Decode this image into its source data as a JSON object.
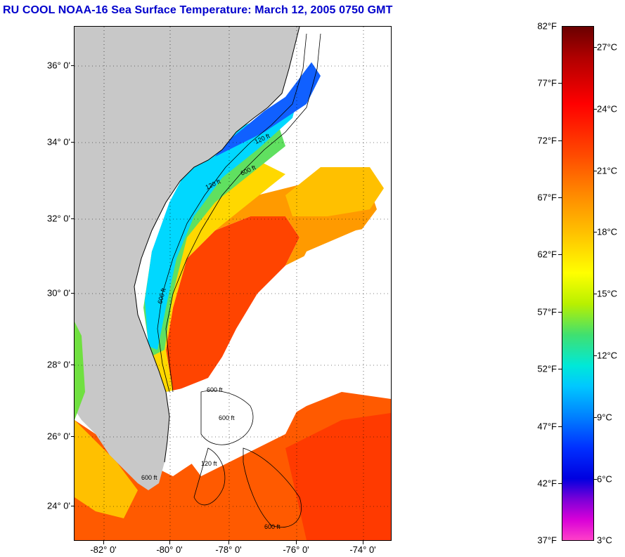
{
  "title": "RU COOL  NOAA-16  Sea Surface Temperature:  March 12, 2005 0750 GMT",
  "map": {
    "lat_labels": [
      "36° 0'",
      "34° 0'",
      "32° 0'",
      "30° 0'",
      "28° 0'",
      "26° 0'",
      "24° 0'"
    ],
    "lon_labels": [
      "-82° 0'",
      "-80° 0'",
      "-78° 0'",
      "-76° 0'",
      "-74° 0'"
    ],
    "contour_labels": [
      "120 ft",
      "600 ft",
      "120 ft",
      "600 ft",
      "600 ft",
      "600 ft",
      "120 ft",
      "600 ft",
      "600 ft"
    ],
    "land_color": "#c8c8c8",
    "cloud_color": "#ffffff"
  },
  "colorbar": {
    "fahrenheit_labels": [
      "82°F",
      "77°F",
      "72°F",
      "67°F",
      "62°F",
      "57°F",
      "52°F",
      "47°F",
      "42°F",
      "37°F"
    ],
    "celsius_labels": [
      "27°C",
      "24°C",
      "21°C",
      "18°C",
      "15°C",
      "12°C",
      "9°C",
      "6°C",
      "3°C"
    ]
  }
}
